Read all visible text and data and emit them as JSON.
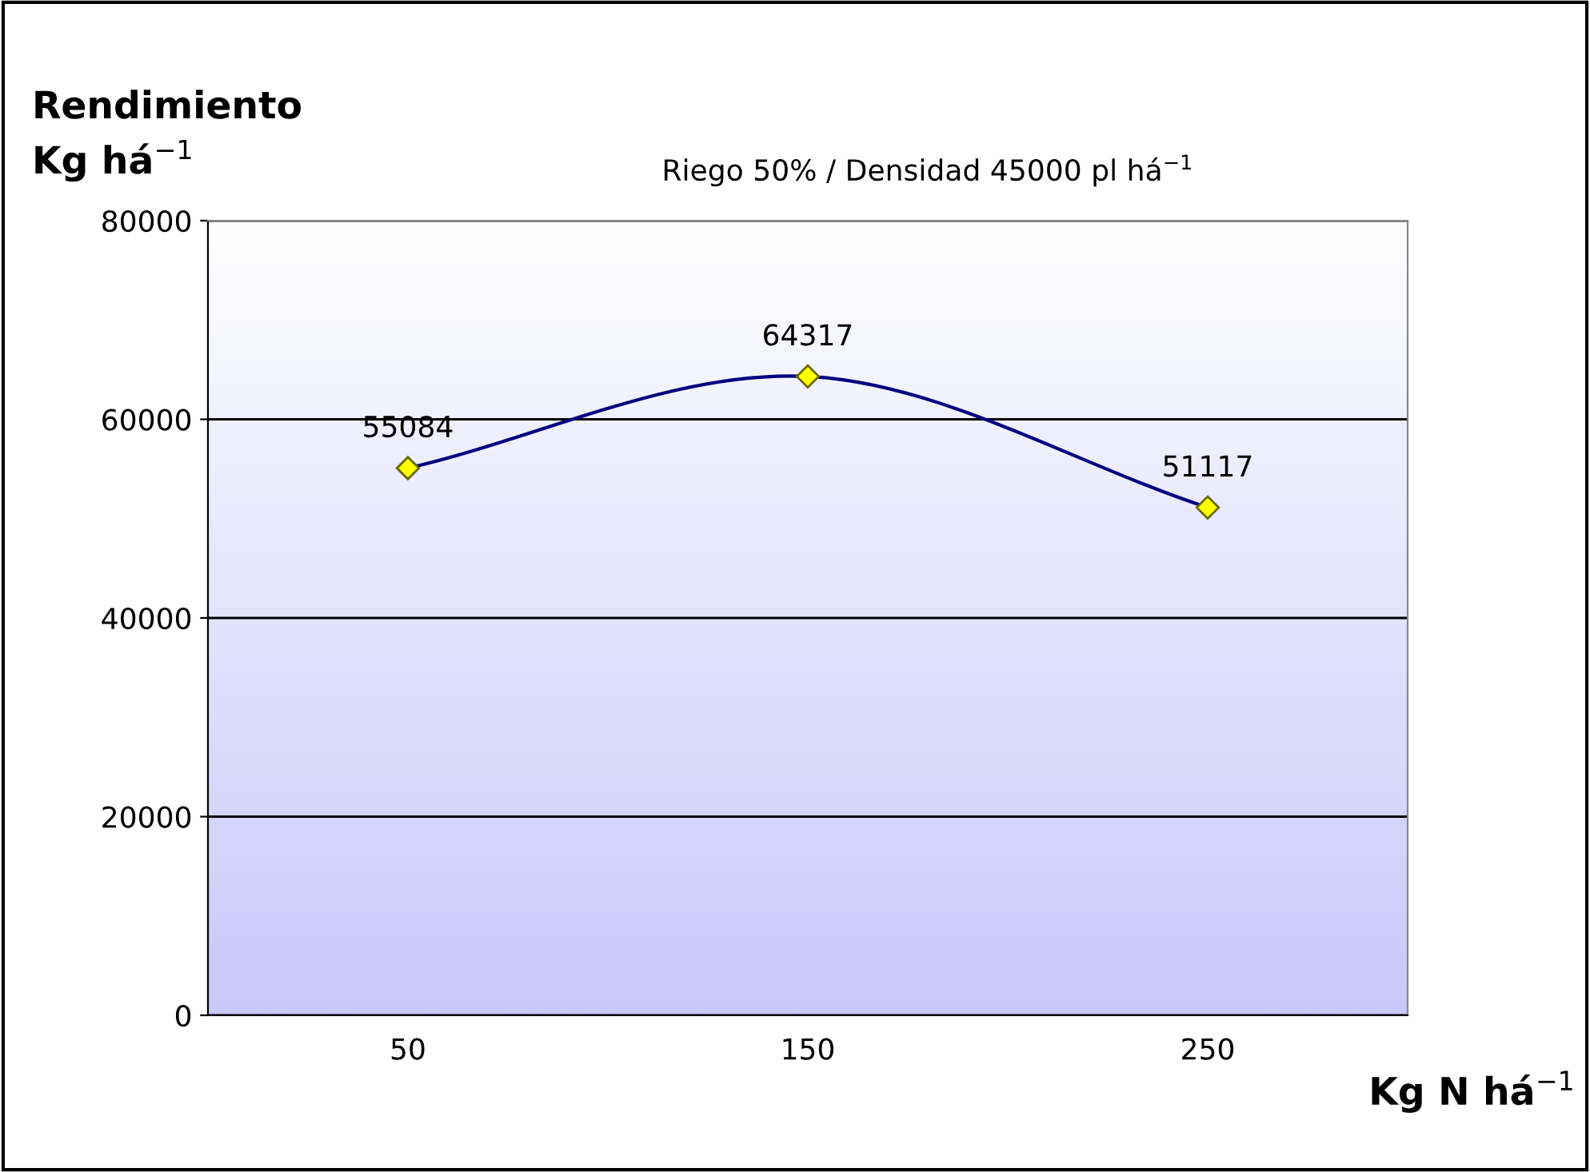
{
  "chart_data": {
    "type": "line",
    "title": "Riego 50% / Densidad 45000 pl há$^{−1}$",
    "ylabel": "Rendimiento\nKg há$^{−1}$",
    "xlabel": "Kg N há$^{−1}$",
    "categories": [
      "50",
      "150",
      "250"
    ],
    "series": [
      {
        "color": "#000080",
        "values": [
          55084,
          64317,
          51117
        ]
      }
    ],
    "ylim": [
      0,
      80000
    ],
    "yticks": [
      0,
      20000,
      40000,
      60000,
      80000
    ],
    "grid": "y",
    "marker": "diamond",
    "line_style": "solid",
    "data_labels": true
  }
}
